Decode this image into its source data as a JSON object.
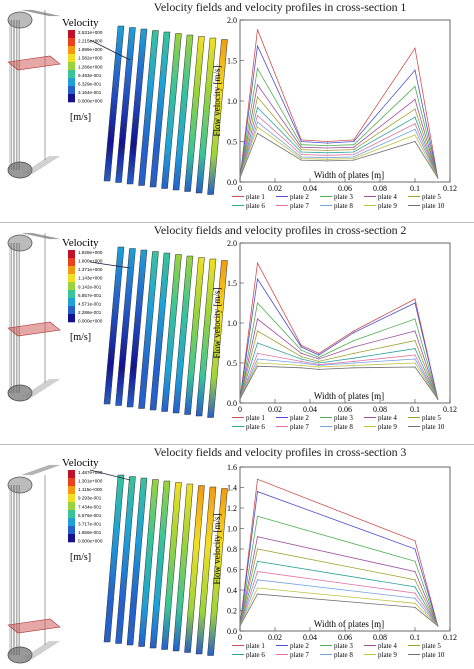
{
  "figure": {
    "titles": [
      "Velocity fields and velocity profiles in cross-section 1",
      "Velocity fields and velocity profiles in cross-section 2",
      "Velocity fields and velocity profiles in cross-section 3"
    ],
    "legend_title": "Velocity",
    "legend_unit": "[m/s]",
    "legend_labels": [
      [
        "2.531e+000",
        "2.215e+000",
        "1.899e+000",
        "1.582e+000",
        "1.266e+000",
        "9.493e-001",
        "6.329e-001",
        "3.164e-001",
        "0.000e+000"
      ],
      [
        "1.828e+000",
        "1.600e+000",
        "1.371e+000",
        "1.143e+000",
        "9.142e-001",
        "6.857e-001",
        "4.571e-001",
        "2.286e-001",
        "0.000e+000"
      ],
      [
        "1.487e+000",
        "1.301e+000",
        "1.115e+000",
        "9.293e-001",
        "7.434e-001",
        "5.576e-001",
        "3.717e-001",
        "1.859e-001",
        "0.000e+000"
      ]
    ],
    "colormap": [
      "#c0102a",
      "#e8431c",
      "#f29a12",
      "#f1df24",
      "#9bd33c",
      "#39c49a",
      "#1fa0d8",
      "#2660c9",
      "#15128f"
    ]
  },
  "chart_data": [
    {
      "type": "line",
      "xlabel": "Width of plates [m]",
      "ylabel": "Flow velocity [m/s]",
      "xlim": [
        0,
        0.12
      ],
      "ylim": [
        0,
        2
      ],
      "xticks": [
        "0",
        "0.02",
        "0.04",
        "0.06",
        "0.08",
        "0.1",
        "0.12"
      ],
      "yticks": [
        "0.0",
        "0.5",
        "1.0",
        "1.5",
        "2.0"
      ],
      "x": [
        0,
        0.01,
        0.035,
        0.05,
        0.065,
        0.1,
        0.113
      ],
      "series": [
        {
          "name": "plate 1",
          "color": "#d05050",
          "values": [
            0.05,
            1.88,
            0.52,
            0.5,
            0.52,
            1.65,
            0.05
          ]
        },
        {
          "name": "plate 2",
          "color": "#5050d0",
          "values": [
            0.05,
            1.68,
            0.5,
            0.48,
            0.5,
            1.38,
            0.05
          ]
        },
        {
          "name": "plate 3",
          "color": "#50b050",
          "values": [
            0.05,
            1.4,
            0.46,
            0.45,
            0.46,
            1.18,
            0.05
          ]
        },
        {
          "name": "plate 4",
          "color": "#a050a0",
          "values": [
            0.05,
            1.2,
            0.43,
            0.42,
            0.43,
            1.02,
            0.05
          ]
        },
        {
          "name": "plate 5",
          "color": "#a0a030",
          "values": [
            0.05,
            1.05,
            0.4,
            0.39,
            0.4,
            0.9,
            0.05
          ]
        },
        {
          "name": "plate 6",
          "color": "#30a0a0",
          "values": [
            0.05,
            0.92,
            0.37,
            0.36,
            0.37,
            0.8,
            0.05
          ]
        },
        {
          "name": "plate 7",
          "color": "#e070a0",
          "values": [
            0.05,
            0.82,
            0.34,
            0.33,
            0.34,
            0.72,
            0.05
          ]
        },
        {
          "name": "plate 8",
          "color": "#70a0e0",
          "values": [
            0.05,
            0.74,
            0.31,
            0.3,
            0.31,
            0.65,
            0.05
          ]
        },
        {
          "name": "plate 9",
          "color": "#c0c040",
          "values": [
            0.05,
            0.68,
            0.29,
            0.28,
            0.29,
            0.58,
            0.05
          ]
        },
        {
          "name": "plate 10",
          "color": "#707070",
          "values": [
            0.05,
            0.6,
            0.27,
            0.26,
            0.27,
            0.5,
            0.05
          ]
        }
      ]
    },
    {
      "type": "line",
      "xlabel": "Width of plates [m]",
      "ylabel": "Flow velocity [m/s]",
      "xlim": [
        0,
        0.12
      ],
      "ylim": [
        0,
        2
      ],
      "xticks": [
        "0",
        "0.02",
        "0.04",
        "0.06",
        "0.08",
        "0.1",
        "0.12"
      ],
      "yticks": [
        "0.0",
        "0.5",
        "1.0",
        "1.5",
        "2.0"
      ],
      "x": [
        0,
        0.01,
        0.035,
        0.045,
        0.065,
        0.1,
        0.113
      ],
      "series": [
        {
          "name": "plate 1",
          "color": "#d05050",
          "values": [
            0.05,
            1.75,
            0.72,
            0.62,
            0.9,
            1.3,
            0.05
          ]
        },
        {
          "name": "plate 2",
          "color": "#5050d0",
          "values": [
            0.05,
            1.55,
            0.7,
            0.6,
            0.88,
            1.25,
            0.05
          ]
        },
        {
          "name": "plate 3",
          "color": "#50b050",
          "values": [
            0.05,
            1.25,
            0.66,
            0.57,
            0.78,
            1.05,
            0.05
          ]
        },
        {
          "name": "plate 4",
          "color": "#a050a0",
          "values": [
            0.05,
            1.05,
            0.62,
            0.55,
            0.7,
            0.9,
            0.05
          ]
        },
        {
          "name": "plate 5",
          "color": "#a0a030",
          "values": [
            0.05,
            0.9,
            0.58,
            0.52,
            0.62,
            0.78,
            0.05
          ]
        },
        {
          "name": "plate 6",
          "color": "#30a0a0",
          "values": [
            0.05,
            0.75,
            0.55,
            0.5,
            0.56,
            0.68,
            0.05
          ]
        },
        {
          "name": "plate 7",
          "color": "#e070a0",
          "values": [
            0.05,
            0.62,
            0.52,
            0.48,
            0.52,
            0.6,
            0.05
          ]
        },
        {
          "name": "plate 8",
          "color": "#70a0e0",
          "values": [
            0.05,
            0.55,
            0.5,
            0.47,
            0.5,
            0.55,
            0.05
          ]
        },
        {
          "name": "plate 9",
          "color": "#c0c040",
          "values": [
            0.05,
            0.5,
            0.47,
            0.45,
            0.47,
            0.5,
            0.05
          ]
        },
        {
          "name": "plate 10",
          "color": "#707070",
          "values": [
            0.05,
            0.46,
            0.44,
            0.42,
            0.44,
            0.45,
            0.05
          ]
        }
      ]
    },
    {
      "type": "line",
      "xlabel": "Width of plates [m]",
      "ylabel": "Flow velocity [m/s]",
      "xlim": [
        0,
        0.12
      ],
      "ylim": [
        0,
        1.6
      ],
      "xticks": [
        "0",
        "0.02",
        "0.04",
        "0.06",
        "0.08",
        "0.1",
        "0.12"
      ],
      "yticks": [
        "0.0",
        "0.2",
        "0.4",
        "0.6",
        "0.8",
        "1.0",
        "1.2",
        "1.4",
        "1.6"
      ],
      "x": [
        0,
        0.01,
        0.1,
        0.113
      ],
      "series": [
        {
          "name": "plate 1",
          "color": "#d05050",
          "values": [
            0.05,
            1.48,
            0.88,
            0.05
          ]
        },
        {
          "name": "plate 2",
          "color": "#5050d0",
          "values": [
            0.05,
            1.36,
            0.8,
            0.05
          ]
        },
        {
          "name": "plate 3",
          "color": "#50b050",
          "values": [
            0.05,
            1.12,
            0.68,
            0.05
          ]
        },
        {
          "name": "plate 4",
          "color": "#a050a0",
          "values": [
            0.05,
            0.92,
            0.58,
            0.05
          ]
        },
        {
          "name": "plate 5",
          "color": "#a0a030",
          "values": [
            0.05,
            0.8,
            0.5,
            0.05
          ]
        },
        {
          "name": "plate 6",
          "color": "#30a0a0",
          "values": [
            0.05,
            0.68,
            0.43,
            0.05
          ]
        },
        {
          "name": "plate 7",
          "color": "#e070a0",
          "values": [
            0.05,
            0.58,
            0.37,
            0.05
          ]
        },
        {
          "name": "plate 8",
          "color": "#70a0e0",
          "values": [
            0.05,
            0.5,
            0.32,
            0.05
          ]
        },
        {
          "name": "plate 9",
          "color": "#c0c040",
          "values": [
            0.05,
            0.42,
            0.27,
            0.05
          ]
        },
        {
          "name": "plate 10",
          "color": "#707070",
          "values": [
            0.05,
            0.36,
            0.23,
            0.05
          ]
        }
      ]
    }
  ]
}
